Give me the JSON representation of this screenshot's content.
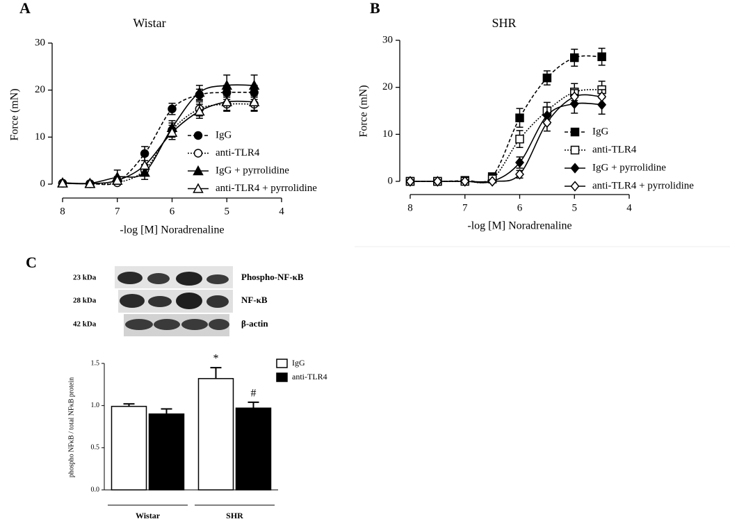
{
  "chart_data": [
    {
      "type": "line",
      "panel": "A",
      "title": "Wistar",
      "xlabel": "-log [M] Noradrenaline",
      "ylabel": "Force (mN)",
      "x": [
        8,
        7.5,
        7,
        6.5,
        6,
        5.5,
        5,
        4.5
      ],
      "xlim": [
        8,
        4
      ],
      "xticks": [
        8,
        7,
        6,
        5,
        4
      ],
      "ylim": [
        0,
        30
      ],
      "yticks": [
        0,
        10,
        20,
        30
      ],
      "series": [
        {
          "name": "IgG",
          "color": "#000000",
          "marker": "circle",
          "filled": true,
          "dash": "dashed",
          "values": [
            0.2,
            0.1,
            0.5,
            6.5,
            16,
            19,
            19.5,
            19.5
          ],
          "errors": [
            0.3,
            0.3,
            0.5,
            1.5,
            1.2,
            1.2,
            1.5,
            1.5
          ]
        },
        {
          "name": "anti-TLR4",
          "color": "#000000",
          "marker": "circle",
          "filled": false,
          "dash": "dotted",
          "values": [
            0.2,
            0.1,
            0.3,
            3,
            11.5,
            16,
            17,
            17
          ],
          "errors": [
            0.3,
            0.3,
            0.4,
            1.2,
            1.5,
            1.5,
            1.5,
            1.5
          ]
        },
        {
          "name": "IgG + pyrrolidine",
          "color": "#000000",
          "marker": "triangle",
          "filled": true,
          "dash": "solid",
          "values": [
            0.3,
            0.2,
            1.5,
            2.5,
            12,
            19.5,
            21,
            21
          ],
          "errors": [
            0.3,
            0.3,
            1.5,
            1.5,
            1.5,
            1.5,
            2.2,
            2.2
          ]
        },
        {
          "name": "anti-TLR4 + pyrrolidine",
          "color": "#000000",
          "marker": "triangle",
          "filled": false,
          "dash": "solid",
          "values": [
            0.2,
            0.1,
            0.8,
            4,
            11,
            15.5,
            17.5,
            17.5
          ],
          "errors": [
            0.3,
            0.3,
            0.8,
            2,
            1.5,
            1.5,
            1.8,
            1.8
          ]
        }
      ]
    },
    {
      "type": "line",
      "panel": "B",
      "title": "SHR",
      "xlabel": "-log [M] Noradrenaline",
      "ylabel": "Force (mN)",
      "x": [
        8,
        7.5,
        7,
        6.5,
        6,
        5.5,
        5,
        4.5
      ],
      "xlim": [
        8,
        4
      ],
      "xticks": [
        8,
        7,
        6,
        5,
        4
      ],
      "ylim": [
        0,
        30
      ],
      "yticks": [
        0,
        10,
        20,
        30
      ],
      "series": [
        {
          "name": "IgG",
          "color": "#000000",
          "marker": "square",
          "filled": true,
          "dash": "dashed",
          "values": [
            0,
            0,
            0.2,
            1,
            13.5,
            22,
            26.3,
            26.5
          ],
          "errors": [
            0.3,
            0.3,
            0.3,
            0.8,
            2,
            1.5,
            1.8,
            1.8
          ]
        },
        {
          "name": "anti-TLR4",
          "color": "#000000",
          "marker": "square",
          "filled": false,
          "dash": "dotted",
          "values": [
            0,
            0,
            0,
            0.5,
            9,
            15,
            19,
            19.5
          ],
          "errors": [
            0.3,
            0.3,
            0.3,
            0.5,
            1.8,
            1.8,
            1.8,
            1.8
          ]
        },
        {
          "name": "IgG + pyrrolidine",
          "color": "#000000",
          "marker": "diamond",
          "filled": true,
          "dash": "solid",
          "values": [
            0,
            0,
            0,
            0,
            4,
            14,
            16.5,
            16.3
          ],
          "errors": [
            0.3,
            0.3,
            0.3,
            0.3,
            1.2,
            1.8,
            2,
            2
          ]
        },
        {
          "name": "anti-TLR4 + pyrrolidine",
          "color": "#000000",
          "marker": "diamond",
          "filled": false,
          "dash": "solid",
          "values": [
            0,
            0,
            0,
            0,
            1.5,
            12.5,
            18,
            18
          ],
          "errors": [
            0.3,
            0.3,
            0.3,
            0.3,
            0.8,
            1.8,
            1.5,
            1.5
          ]
        }
      ]
    },
    {
      "type": "bar",
      "panel": "C",
      "ylabel": "phospho NFκB / total NFκB protein",
      "categories": [
        "Wistar",
        "SHR"
      ],
      "ylim": [
        0,
        1.5
      ],
      "yticks": [
        {
          "value": 0,
          "label": "0.0"
        },
        {
          "value": 0.5,
          "label": "0.5"
        },
        {
          "value": 1,
          "label": "1.0"
        },
        {
          "value": 1.5,
          "label": "1.5"
        }
      ],
      "series": [
        {
          "name": "IgG",
          "color": "#ffffff",
          "values": [
            0.99,
            1.32
          ],
          "errors": [
            0.03,
            0.13
          ],
          "significance": [
            null,
            "*"
          ]
        },
        {
          "name": "anti-TLR4",
          "color": "#000000",
          "values": [
            0.9,
            0.97
          ],
          "errors": [
            0.06,
            0.07
          ],
          "significance": [
            null,
            "#"
          ]
        }
      ]
    }
  ],
  "blot": {
    "rows": [
      {
        "size": "23 kDa",
        "protein": "Phospho-NF-κB"
      },
      {
        "size": "28 kDa",
        "protein": "NF-κB"
      },
      {
        "size": "42 kDa",
        "protein": "β-actin"
      }
    ]
  }
}
